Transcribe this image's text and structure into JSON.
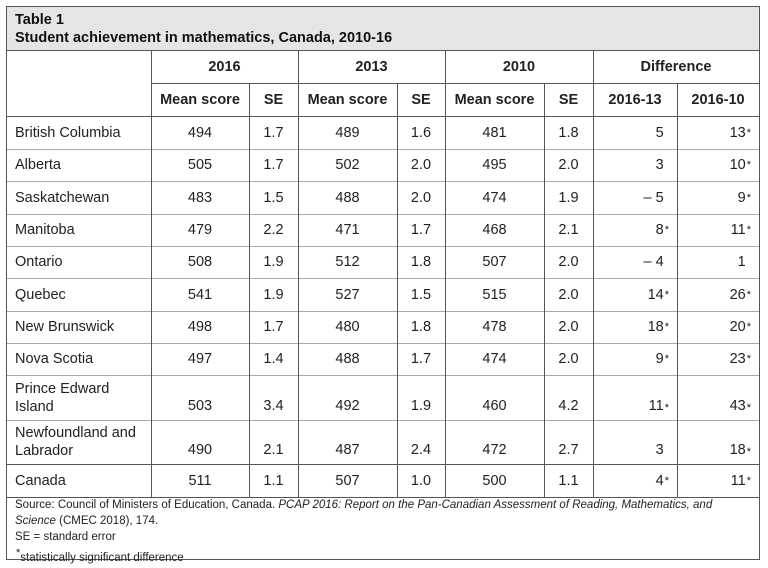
{
  "table": {
    "label": "Table 1",
    "title": "Student achievement in mathematics, Canada, 2010-16",
    "group_headers": [
      "2016",
      "2013",
      "2010",
      "Difference"
    ],
    "sub_headers": [
      "Mean score",
      "SE",
      "Mean score",
      "SE",
      "Mean score",
      "SE",
      "2016-13",
      "2016-10"
    ],
    "rows": [
      {
        "name": "British Columbia",
        "cells": [
          "494",
          "1.7",
          "489",
          "1.6",
          "481",
          "1.8",
          "5",
          "13"
        ],
        "sig": [
          false,
          false,
          false,
          false,
          false,
          false,
          false,
          true
        ]
      },
      {
        "name": "Alberta",
        "cells": [
          "505",
          "1.7",
          "502",
          "2.0",
          "495",
          "2.0",
          "3",
          "10"
        ],
        "sig": [
          false,
          false,
          false,
          false,
          false,
          false,
          false,
          true
        ]
      },
      {
        "name": "Saskatchewan",
        "cells": [
          "483",
          "1.5",
          "488",
          "2.0",
          "474",
          "1.9",
          "– 5",
          "9"
        ],
        "sig": [
          false,
          false,
          false,
          false,
          false,
          false,
          false,
          true
        ]
      },
      {
        "name": "Manitoba",
        "cells": [
          "479",
          "2.2",
          "471",
          "1.7",
          "468",
          "2.1",
          "8",
          "11"
        ],
        "sig": [
          false,
          false,
          false,
          false,
          false,
          false,
          true,
          true
        ]
      },
      {
        "name": "Ontario",
        "cells": [
          "508",
          "1.9",
          "512",
          "1.8",
          "507",
          "2.0",
          "– 4",
          "1"
        ],
        "sig": [
          false,
          false,
          false,
          false,
          false,
          false,
          false,
          false
        ]
      },
      {
        "name": "Quebec",
        "cells": [
          "541",
          "1.9",
          "527",
          "1.5",
          "515",
          "2.0",
          "14",
          "26"
        ],
        "sig": [
          false,
          false,
          false,
          false,
          false,
          false,
          true,
          true
        ]
      },
      {
        "name": "New Brunswick",
        "cells": [
          "498",
          "1.7",
          "480",
          "1.8",
          "478",
          "2.0",
          "18",
          "20"
        ],
        "sig": [
          false,
          false,
          false,
          false,
          false,
          false,
          true,
          true
        ]
      },
      {
        "name": "Nova Scotia",
        "cells": [
          "497",
          "1.4",
          "488",
          "1.7",
          "474",
          "2.0",
          "9",
          "23"
        ],
        "sig": [
          false,
          false,
          false,
          false,
          false,
          false,
          true,
          true
        ]
      },
      {
        "name": "Prince Edward Island",
        "cells": [
          "503",
          "3.4",
          "492",
          "1.9",
          "460",
          "4.2",
          "11",
          "43"
        ],
        "sig": [
          false,
          false,
          false,
          false,
          false,
          false,
          true,
          true
        ]
      },
      {
        "name": "Newfoundland and Labrador",
        "cells": [
          "490",
          "2.1",
          "487",
          "2.4",
          "472",
          "2.7",
          "3",
          "18"
        ],
        "sig": [
          false,
          false,
          false,
          false,
          false,
          false,
          false,
          true
        ]
      },
      {
        "name": "Canada",
        "cells": [
          "511",
          "1.1",
          "507",
          "1.0",
          "500",
          "1.1",
          "4",
          "11"
        ],
        "sig": [
          false,
          false,
          false,
          false,
          false,
          false,
          true,
          true
        ]
      }
    ],
    "sig_marker": "*"
  },
  "footer": {
    "source_prefix": "Source: Council of Ministers of Education, Canada. ",
    "source_title": "PCAP 2016: Report on the Pan-Canadian Assessment of Reading, Mathematics, and Science",
    "source_suffix": " (CMEC 2018), 174.",
    "se_note": "SE = standard error",
    "sig_note_marker": "*",
    "sig_note": "statistically significant difference"
  }
}
